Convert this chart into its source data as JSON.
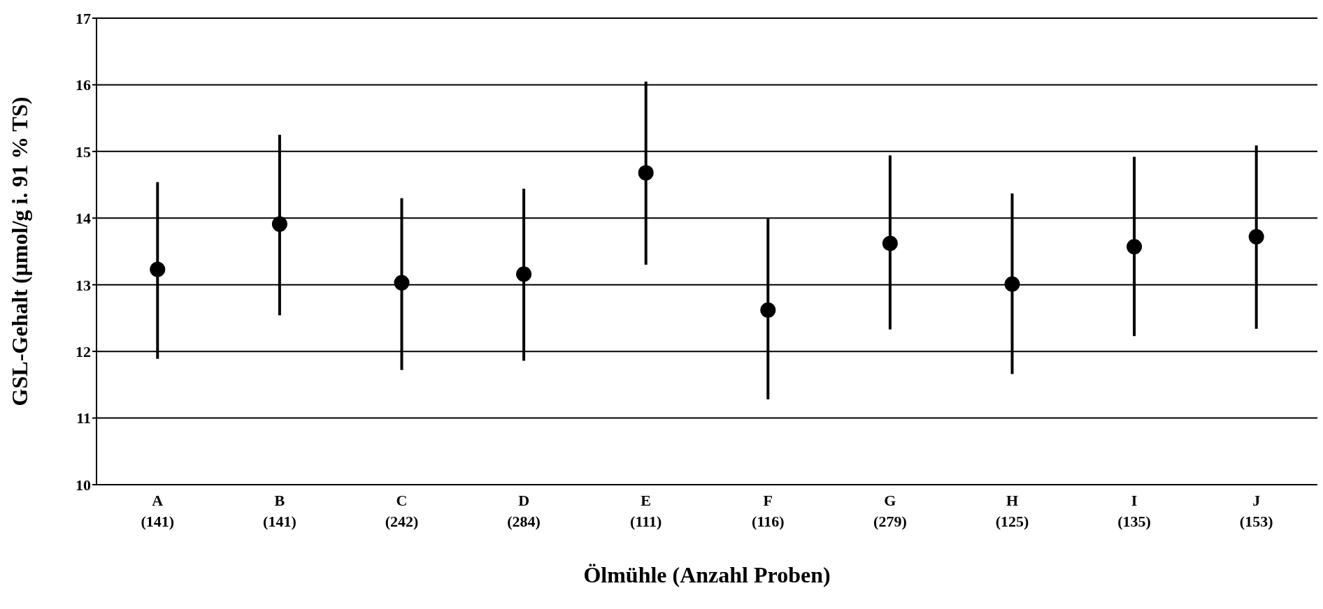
{
  "chart_data": {
    "type": "scatter",
    "xlabel": "Ölmühle (Anzahl Proben)",
    "ylabel": "GSL-Gehalt (µmol/g i. 91 % TS)",
    "categories": [
      "A\n(141)",
      "B\n(141)",
      "C\n(242)",
      "D\n(284)",
      "E\n(111)",
      "F\n(116)",
      "G\n(279)",
      "H\n(125)",
      "I\n(135)",
      "J\n(153)"
    ],
    "values": [
      13.23,
      13.91,
      13.03,
      13.16,
      14.68,
      12.62,
      13.62,
      13.01,
      13.57,
      13.72
    ],
    "errors": [
      [
        11.89,
        14.54
      ],
      [
        12.54,
        15.25
      ],
      [
        11.72,
        14.3
      ],
      [
        11.86,
        14.44
      ],
      [
        13.3,
        16.05
      ],
      [
        11.28,
        13.99
      ],
      [
        12.33,
        14.94
      ],
      [
        11.66,
        14.37
      ],
      [
        12.23,
        14.92
      ],
      [
        12.34,
        15.09
      ]
    ],
    "color": "#000000",
    "marker": "circle",
    "ylim": [
      10,
      17
    ],
    "yticks": [
      10,
      11,
      12,
      13,
      14,
      15,
      16,
      17
    ],
    "grid": "y"
  }
}
